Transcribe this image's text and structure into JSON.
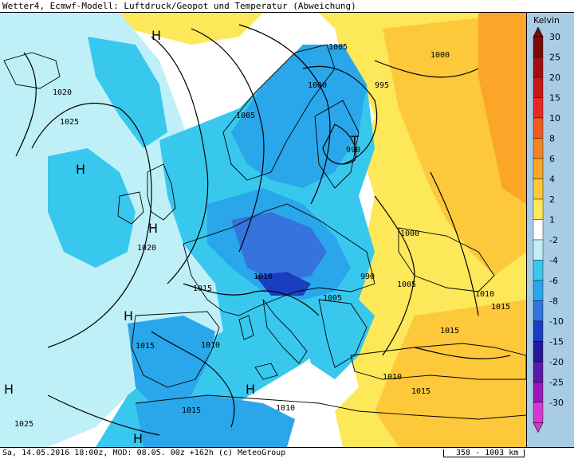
{
  "title": "Wetter4, Ecmwf-Modell: Luftdruck/Geopot und Temperatur (Abweichung)",
  "footer": "Sa, 14.05.2016 18:00z, MOD: 08.05. 00z +162h (c) MeteoGroup",
  "scale": "358 - 1003 km",
  "legend": {
    "unit": "Kelvin",
    "steps": [
      {
        "label": "30",
        "color": "#7a0a0a"
      },
      {
        "label": "25",
        "color": "#a01010"
      },
      {
        "label": "20",
        "color": "#c81818"
      },
      {
        "label": "15",
        "color": "#e62828"
      },
      {
        "label": "10",
        "color": "#f05a1e"
      },
      {
        "label": "8",
        "color": "#f68220"
      },
      {
        "label": "6",
        "color": "#fba628"
      },
      {
        "label": "4",
        "color": "#fdc83a"
      },
      {
        "label": "2",
        "color": "#fde85a"
      },
      {
        "label": "1",
        "color": "#ffffff"
      },
      {
        "label": "-2",
        "color": "#bff0f8"
      },
      {
        "label": "-4",
        "color": "#38c8ee"
      },
      {
        "label": "-6",
        "color": "#2aa6ea"
      },
      {
        "label": "-8",
        "color": "#3474dc"
      },
      {
        "label": "-10",
        "color": "#1a3ec0"
      },
      {
        "label": "-15",
        "color": "#241a9a"
      },
      {
        "label": "-20",
        "color": "#5a1aa6"
      },
      {
        "label": "-25",
        "color": "#9a18b6"
      },
      {
        "label": "-30",
        "color": "#d43ad2"
      }
    ]
  },
  "isobar_labels": [
    "1020",
    "1025",
    "1005",
    "1000",
    "995",
    "990",
    "1005",
    "1000",
    "1000",
    "1020",
    "1015",
    "1010",
    "1005",
    "990",
    "1005",
    "1010",
    "1015",
    "1015",
    "1010",
    "1015",
    "1010",
    "1015",
    "1010",
    "1015",
    "1025"
  ],
  "pressure_centers": [
    "H",
    "H",
    "H",
    "T",
    "H",
    "H",
    "H",
    "H"
  ]
}
